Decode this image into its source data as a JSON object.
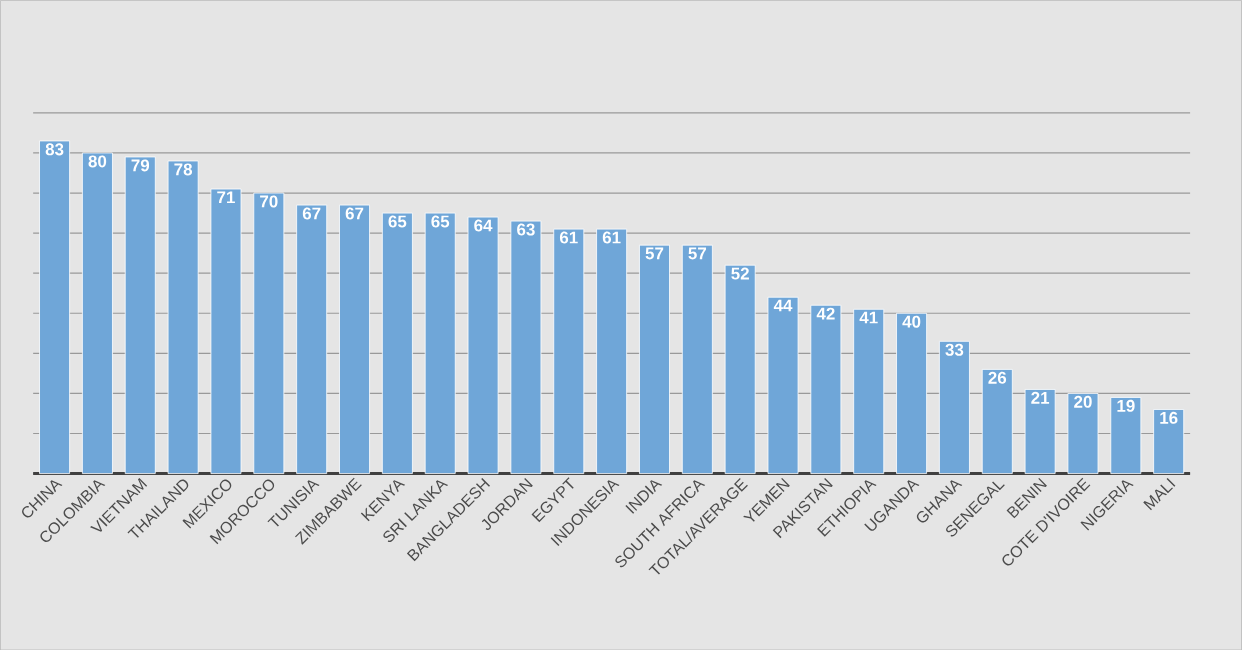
{
  "chart_data": {
    "type": "bar",
    "categories": [
      "CHINA",
      "COLOMBIA",
      "VIETNAM",
      "THAILAND",
      "MEXICO",
      "MOROCCO",
      "TUNISIA",
      "ZIMBABWE",
      "KENYA",
      "SRI LANKA",
      "BANGLADESH",
      "JORDAN",
      "EGYPT",
      "INDONESIA",
      "INDIA",
      "SOUTH AFRICA",
      "TOTAL/AVERAGE",
      "YEMEN",
      "PAKISTAN",
      "ETHIOPIA",
      "UGANDA",
      "GHANA",
      "SENEGAL",
      "BENIN",
      "COTE D'IVOIRE",
      "NIGERIA",
      "MALI"
    ],
    "values": [
      83,
      80,
      79,
      78,
      71,
      70,
      67,
      67,
      65,
      65,
      64,
      63,
      61,
      61,
      57,
      57,
      52,
      44,
      42,
      41,
      40,
      33,
      26,
      21,
      20,
      19,
      16
    ],
    "color": "#6fa6d8",
    "grid": "y",
    "tick_labels": "x",
    "data_labels": true
  }
}
